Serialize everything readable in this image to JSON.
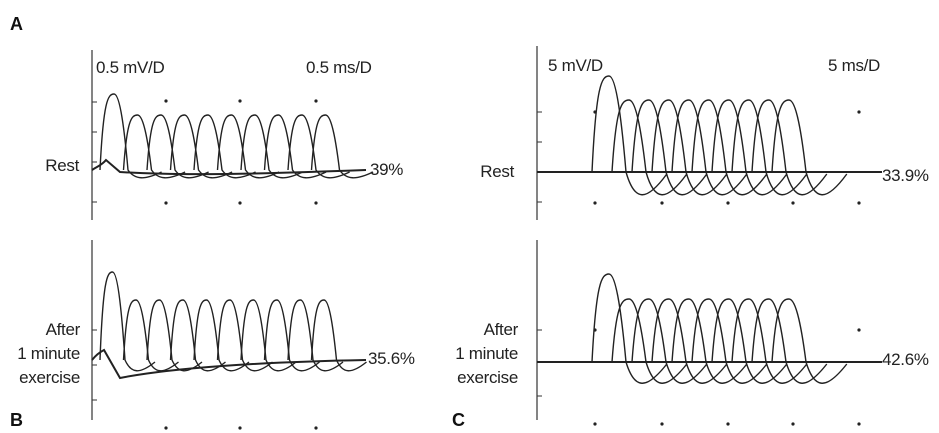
{
  "figure": {
    "panel_labels": [
      "A",
      "B",
      "C"
    ],
    "left_panel": {
      "amplitude_scale": "0.5 mV/D",
      "time_scale": "0.5 ms/D",
      "traces": [
        {
          "condition_lines": [
            "Rest"
          ],
          "decrement": "39%"
        },
        {
          "condition_lines": [
            "After",
            "1 minute",
            "exercise"
          ],
          "decrement": "35.6%"
        }
      ]
    },
    "right_panel": {
      "amplitude_scale": "5 mV/D",
      "time_scale": "5 ms/D",
      "traces": [
        {
          "condition_lines": [
            "Rest"
          ],
          "decrement": "33.9%"
        },
        {
          "condition_lines": [
            "After",
            "1 minute",
            "exercise"
          ],
          "decrement": "42.6%"
        }
      ]
    }
  }
}
